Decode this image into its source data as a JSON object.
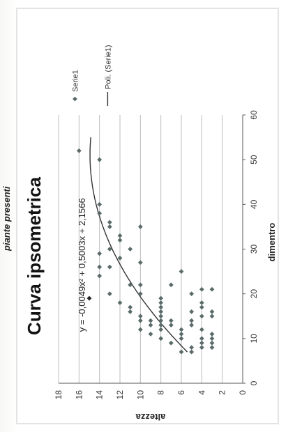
{
  "header_fragment": "piante presenti",
  "chart_data": {
    "type": "scatter",
    "title": "Curva ipsometrica",
    "xlabel": "dimentro",
    "ylabel": "altezza",
    "xlim": [
      0,
      60
    ],
    "ylim": [
      0,
      18
    ],
    "x_ticks": [
      0,
      10,
      20,
      30,
      40,
      50,
      60
    ],
    "y_ticks": [
      0,
      2,
      4,
      6,
      8,
      10,
      12,
      14,
      16,
      18
    ],
    "grid": "horizontal",
    "legend_position": "right",
    "series": [
      {
        "name": "Serie1",
        "color": "#5a6b6a",
        "points": [
          [
            7,
            5
          ],
          [
            7,
            6
          ],
          [
            8,
            3
          ],
          [
            8,
            4
          ],
          [
            8,
            5
          ],
          [
            9,
            3
          ],
          [
            9,
            4
          ],
          [
            9,
            7
          ],
          [
            10,
            3
          ],
          [
            10,
            4
          ],
          [
            10,
            6
          ],
          [
            10,
            8
          ],
          [
            11,
            3
          ],
          [
            11,
            6
          ],
          [
            11,
            9
          ],
          [
            12,
            4
          ],
          [
            12,
            6
          ],
          [
            12,
            8
          ],
          [
            12,
            10
          ],
          [
            13,
            5
          ],
          [
            13,
            7
          ],
          [
            13,
            8
          ],
          [
            13,
            9
          ],
          [
            14,
            5
          ],
          [
            14,
            7
          ],
          [
            14,
            8
          ],
          [
            14,
            9
          ],
          [
            14,
            10
          ],
          [
            15,
            3
          ],
          [
            15,
            4
          ],
          [
            15,
            8
          ],
          [
            15,
            10
          ],
          [
            16,
            3
          ],
          [
            16,
            5
          ],
          [
            16,
            8
          ],
          [
            16,
            11
          ],
          [
            17,
            4
          ],
          [
            17,
            8
          ],
          [
            17,
            11
          ],
          [
            18,
            4
          ],
          [
            18,
            8
          ],
          [
            18,
            12
          ],
          [
            19,
            8
          ],
          [
            20,
            5
          ],
          [
            20,
            10
          ],
          [
            20,
            13
          ],
          [
            21,
            3
          ],
          [
            21,
            4
          ],
          [
            22,
            7
          ],
          [
            22,
            10
          ],
          [
            22,
            11
          ],
          [
            24,
            14
          ],
          [
            25,
            6
          ],
          [
            26,
            13
          ],
          [
            26,
            14
          ],
          [
            27,
            10
          ],
          [
            28,
            12
          ],
          [
            29,
            14
          ],
          [
            30,
            11
          ],
          [
            30,
            13
          ],
          [
            32,
            12
          ],
          [
            33,
            12
          ],
          [
            35,
            10
          ],
          [
            35,
            13
          ],
          [
            36,
            13
          ],
          [
            38,
            14
          ],
          [
            40,
            14
          ],
          [
            50,
            14
          ],
          [
            52,
            16
          ]
        ]
      },
      {
        "name": "Poli. (Serie1)",
        "type": "trendline",
        "color": "#333333",
        "equation": "y = -0,0049x² + 0,5003x + 2,1566",
        "coefficients": {
          "a": -0.0049,
          "b": 0.5003,
          "c": 2.1566
        },
        "x_range": [
          7,
          55
        ]
      }
    ],
    "highlighted_point": {
      "x": 19,
      "y": 15,
      "color": "#222222"
    }
  }
}
